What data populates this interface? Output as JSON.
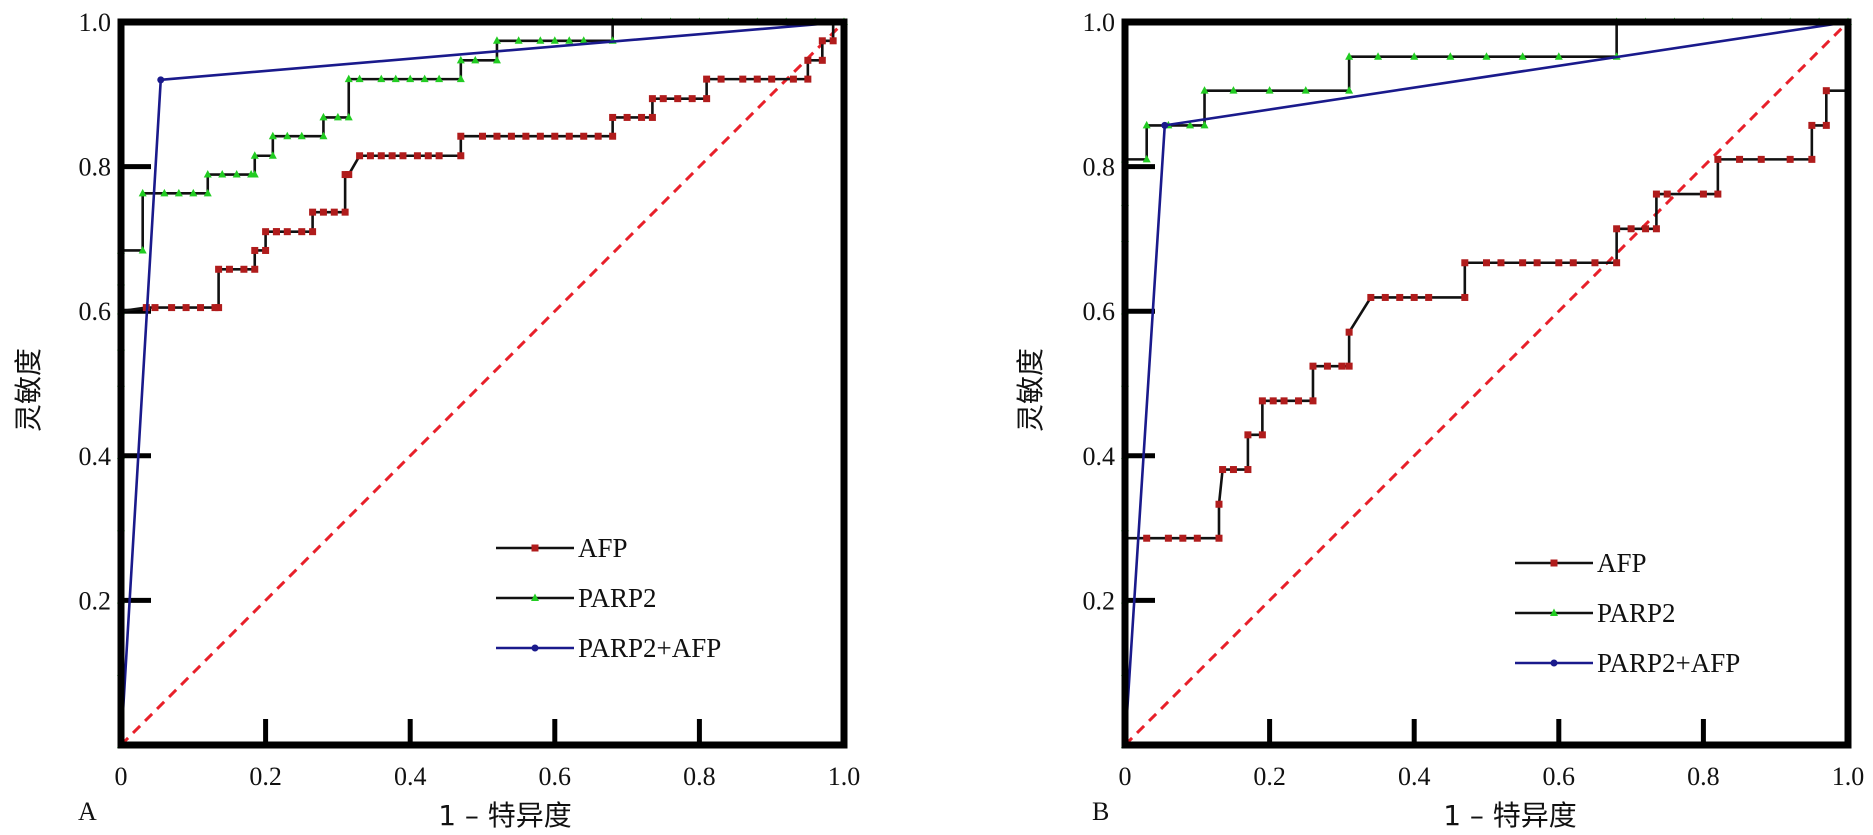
{
  "chart_data": [
    {
      "panel": "A",
      "type": "line",
      "xlabel": "1 – 特异度",
      "ylabel": "灵敏度",
      "xlim": [
        0,
        1
      ],
      "ylim": [
        0,
        1
      ],
      "x_ticks": [
        "0",
        "0.2",
        "0.4",
        "0.6",
        "0.8",
        "1.0"
      ],
      "y_ticks": [
        "0.2",
        "0.4",
        "0.6",
        "0.8",
        "1.0"
      ],
      "grid": false,
      "legend_position": "bottom-right",
      "reference_line": {
        "from": [
          0,
          0
        ],
        "to": [
          1,
          1
        ],
        "style": "dashed",
        "color": "#e8202a"
      },
      "series": [
        {
          "name": "AFP",
          "color": "#111111",
          "marker_color": "#b01c1c",
          "marker": "square",
          "x": [
            0,
            0,
            0.035,
            0.047,
            0.07,
            0.09,
            0.11,
            0.13,
            0.135,
            0.135,
            0.15,
            0.17,
            0.185,
            0.185,
            0.2,
            0.2,
            0.215,
            0.215,
            0.23,
            0.25,
            0.265,
            0.265,
            0.28,
            0.295,
            0.31,
            0.31,
            0.315,
            0.33,
            0.345,
            0.36,
            0.375,
            0.39,
            0.41,
            0.425,
            0.44,
            0.47,
            0.47,
            0.5,
            0.52,
            0.54,
            0.56,
            0.58,
            0.6,
            0.62,
            0.64,
            0.66,
            0.68,
            0.68,
            0.7,
            0.72,
            0.735,
            0.735,
            0.75,
            0.77,
            0.79,
            0.81,
            0.81,
            0.83,
            0.86,
            0.88,
            0.9,
            0.93,
            0.95,
            0.95,
            0.97,
            0.97,
            0.985,
            0.985,
            1.0
          ],
          "y": [
            0,
            0.6,
            0.605,
            0.605,
            0.605,
            0.605,
            0.605,
            0.605,
            0.605,
            0.658,
            0.658,
            0.658,
            0.658,
            0.684,
            0.684,
            0.71,
            0.71,
            0.71,
            0.71,
            0.71,
            0.71,
            0.737,
            0.737,
            0.737,
            0.737,
            0.789,
            0.789,
            0.815,
            0.815,
            0.815,
            0.815,
            0.815,
            0.815,
            0.815,
            0.815,
            0.815,
            0.842,
            0.842,
            0.842,
            0.842,
            0.842,
            0.842,
            0.842,
            0.842,
            0.842,
            0.842,
            0.842,
            0.868,
            0.868,
            0.868,
            0.868,
            0.894,
            0.894,
            0.894,
            0.894,
            0.894,
            0.921,
            0.921,
            0.921,
            0.921,
            0.921,
            0.921,
            0.921,
            0.947,
            0.947,
            0.974,
            0.974,
            1.0,
            1.0
          ]
        },
        {
          "name": "PARP2",
          "color": "#111111",
          "marker_color": "#22cc22",
          "marker": "triangle",
          "x": [
            0,
            0,
            0,
            0,
            0,
            0,
            0,
            0,
            0,
            0,
            0.03,
            0.03,
            0.06,
            0.08,
            0.1,
            0.12,
            0.12,
            0.14,
            0.16,
            0.18,
            0.185,
            0.185,
            0.21,
            0.21,
            0.23,
            0.25,
            0.28,
            0.28,
            0.3,
            0.315,
            0.315,
            0.33,
            0.36,
            0.38,
            0.4,
            0.42,
            0.44,
            0.47,
            0.47,
            0.49,
            0.52,
            0.52,
            0.55,
            0.58,
            0.6,
            0.62,
            0.64,
            0.68,
            0.68,
            0.72,
            0.76,
            0.8,
            0.84,
            0.88,
            0.92,
            0.96,
            1.0
          ],
          "y": [
            0,
            0.1,
            0.2,
            0.3,
            0.4,
            0.5,
            0.55,
            0.6,
            0.64,
            0.684,
            0.684,
            0.763,
            0.763,
            0.763,
            0.763,
            0.763,
            0.789,
            0.789,
            0.789,
            0.789,
            0.789,
            0.815,
            0.815,
            0.842,
            0.842,
            0.842,
            0.842,
            0.868,
            0.868,
            0.868,
            0.921,
            0.921,
            0.921,
            0.921,
            0.921,
            0.921,
            0.921,
            0.921,
            0.947,
            0.947,
            0.947,
            0.974,
            0.974,
            0.974,
            0.974,
            0.974,
            0.974,
            0.974,
            1.0,
            1.0,
            1.0,
            1.0,
            1.0,
            1.0,
            1.0,
            1.0,
            1.0
          ]
        },
        {
          "name": "PARP2+AFP",
          "color": "#1a1a8c",
          "marker_color": "#1a1a8c",
          "marker": "circle",
          "x": [
            0,
            0.055,
            1.0
          ],
          "y": [
            0,
            0.92,
            1.0
          ]
        }
      ]
    },
    {
      "panel": "B",
      "type": "line",
      "xlabel": "1 – 特异度",
      "ylabel": "灵敏度",
      "xlim": [
        0,
        1
      ],
      "ylim": [
        0,
        1
      ],
      "x_ticks": [
        "0",
        "0.2",
        "0.4",
        "0.6",
        "0.8",
        "1.0"
      ],
      "y_ticks": [
        "0.2",
        "0.4",
        "0.6",
        "0.8",
        "1.0"
      ],
      "grid": false,
      "legend_position": "bottom-right",
      "reference_line": {
        "from": [
          0,
          0
        ],
        "to": [
          1,
          1
        ],
        "style": "dashed",
        "color": "#e8202a"
      },
      "series": [
        {
          "name": "AFP",
          "color": "#111111",
          "marker_color": "#b01c1c",
          "marker": "square",
          "x": [
            0,
            0,
            0.03,
            0.06,
            0.08,
            0.1,
            0.13,
            0.13,
            0.135,
            0.15,
            0.17,
            0.17,
            0.19,
            0.19,
            0.205,
            0.22,
            0.24,
            0.26,
            0.26,
            0.28,
            0.3,
            0.31,
            0.31,
            0.34,
            0.36,
            0.38,
            0.4,
            0.42,
            0.47,
            0.47,
            0.5,
            0.52,
            0.55,
            0.57,
            0.6,
            0.62,
            0.65,
            0.68,
            0.68,
            0.7,
            0.72,
            0.735,
            0.735,
            0.75,
            0.8,
            0.82,
            0.82,
            0.85,
            0.88,
            0.92,
            0.95,
            0.95,
            0.97,
            0.97,
            1.0
          ],
          "y": [
            0,
            0.286,
            0.286,
            0.286,
            0.286,
            0.286,
            0.286,
            0.333,
            0.381,
            0.381,
            0.381,
            0.429,
            0.429,
            0.476,
            0.476,
            0.476,
            0.476,
            0.476,
            0.524,
            0.524,
            0.524,
            0.524,
            0.571,
            0.619,
            0.619,
            0.619,
            0.619,
            0.619,
            0.619,
            0.667,
            0.667,
            0.667,
            0.667,
            0.667,
            0.667,
            0.667,
            0.667,
            0.667,
            0.714,
            0.714,
            0.714,
            0.714,
            0.762,
            0.762,
            0.762,
            0.762,
            0.81,
            0.81,
            0.81,
            0.81,
            0.81,
            0.857,
            0.857,
            0.905,
            0.905
          ]
        },
        {
          "name": "PARP2",
          "color": "#111111",
          "marker_color": "#22cc22",
          "marker": "triangle",
          "x": [
            0,
            0,
            0,
            0,
            0,
            0,
            0,
            0,
            0,
            0,
            0.03,
            0.03,
            0.06,
            0.09,
            0.11,
            0.11,
            0.15,
            0.2,
            0.25,
            0.31,
            0.31,
            0.35,
            0.4,
            0.45,
            0.5,
            0.55,
            0.6,
            0.68,
            0.68,
            0.72,
            0.76,
            0.8,
            0.84,
            0.88,
            0.92,
            0.96,
            1.0
          ],
          "y": [
            0,
            0.1,
            0.2,
            0.3,
            0.4,
            0.5,
            0.6,
            0.7,
            0.75,
            0.81,
            0.81,
            0.857,
            0.857,
            0.857,
            0.857,
            0.905,
            0.905,
            0.905,
            0.905,
            0.905,
            0.952,
            0.952,
            0.952,
            0.952,
            0.952,
            0.952,
            0.952,
            0.952,
            1.0,
            1.0,
            1.0,
            1.0,
            1.0,
            1.0,
            1.0,
            1.0,
            1.0
          ]
        },
        {
          "name": "PARP2+AFP",
          "color": "#1a1a8c",
          "marker_color": "#1a1a8c",
          "marker": "circle",
          "x": [
            0,
            0.055,
            1.0
          ],
          "y": [
            0,
            0.857,
            1.0
          ]
        }
      ]
    }
  ]
}
